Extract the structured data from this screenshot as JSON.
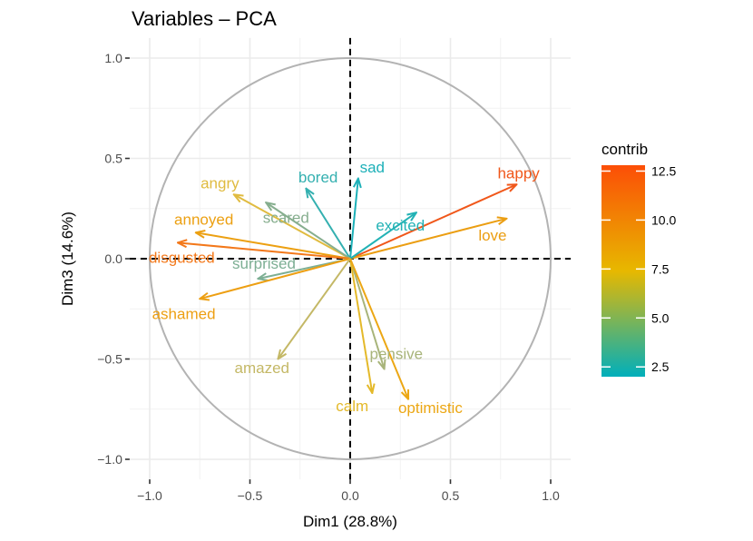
{
  "chart_data": {
    "type": "scatter",
    "title": "Variables – PCA",
    "xlabel": "Dim1 (28.8%)",
    "ylabel": "Dim3 (14.6%)",
    "xlim": [
      -1.1,
      1.1
    ],
    "ylim": [
      -1.1,
      1.1
    ],
    "xticks": [
      -1.0,
      -0.5,
      0.0,
      0.5,
      1.0
    ],
    "xtick_labels": [
      "−1.0",
      "−0.5",
      "0.0",
      "0.5",
      "1.0"
    ],
    "yticks": [
      -1.0,
      -0.5,
      0.0,
      0.5,
      1.0
    ],
    "ytick_labels": [
      "−1.0",
      "−0.5",
      "0.0",
      "0.5",
      "1.0"
    ],
    "grid": true,
    "legend": {
      "title": "contrib",
      "placement": "right",
      "min": 2.0,
      "max": 12.8,
      "ticks": [
        2.5,
        5.0,
        7.5,
        10.0,
        12.5
      ],
      "tick_labels": [
        "2.5",
        "5.0",
        "7.5",
        "10.0",
        "12.5"
      ],
      "colors": [
        "#00AFBB",
        "#E7B800",
        "#FC4E07"
      ]
    },
    "variables": [
      {
        "name": "happy",
        "x": 0.83,
        "y": 0.37,
        "contrib": 12.4,
        "color": "#F0571A",
        "label_x": 0.84,
        "label_y": 0.42
      },
      {
        "name": "love",
        "x": 0.78,
        "y": 0.2,
        "contrib": 9.5,
        "color": "#EB9E12",
        "label_x": 0.71,
        "label_y": 0.11
      },
      {
        "name": "excited",
        "x": 0.33,
        "y": 0.23,
        "contrib": 2.6,
        "color": "#22B2B5",
        "label_x": 0.25,
        "label_y": 0.16
      },
      {
        "name": "sad",
        "x": 0.04,
        "y": 0.4,
        "contrib": 2.4,
        "color": "#1DB0B8",
        "label_x": 0.11,
        "label_y": 0.45
      },
      {
        "name": "bored",
        "x": -0.22,
        "y": 0.35,
        "contrib": 2.8,
        "color": "#34B0B0",
        "label_x": -0.16,
        "label_y": 0.4
      },
      {
        "name": "angry",
        "x": -0.58,
        "y": 0.32,
        "contrib": 7.2,
        "color": "#E0BB40",
        "label_x": -0.65,
        "label_y": 0.37
      },
      {
        "name": "scared",
        "x": -0.42,
        "y": 0.28,
        "contrib": 4.2,
        "color": "#86AE8E",
        "label_x": -0.32,
        "label_y": 0.2
      },
      {
        "name": "annoyed",
        "x": -0.77,
        "y": 0.13,
        "contrib": 9.4,
        "color": "#ECA012",
        "label_x": -0.73,
        "label_y": 0.19
      },
      {
        "name": "disgusted",
        "x": -0.86,
        "y": 0.08,
        "contrib": 11.5,
        "color": "#F3781A",
        "label_x": -0.84,
        "label_y": 0.0
      },
      {
        "name": "surprised",
        "x": -0.46,
        "y": -0.1,
        "contrib": 4.0,
        "color": "#7DAF94",
        "label_x": -0.43,
        "label_y": -0.03
      },
      {
        "name": "ashamed",
        "x": -0.75,
        "y": -0.2,
        "contrib": 9.6,
        "color": "#ED9F12",
        "label_x": -0.83,
        "label_y": -0.28
      },
      {
        "name": "amazed",
        "x": -0.36,
        "y": -0.5,
        "contrib": 6.2,
        "color": "#C4B866",
        "label_x": -0.44,
        "label_y": -0.55
      },
      {
        "name": "pensive",
        "x": 0.17,
        "y": -0.55,
        "contrib": 5.2,
        "color": "#A8B47A",
        "label_x": 0.23,
        "label_y": -0.48
      },
      {
        "name": "calm",
        "x": 0.11,
        "y": -0.67,
        "contrib": 7.6,
        "color": "#E4B92A",
        "label_x": 0.01,
        "label_y": -0.74
      },
      {
        "name": "optimistic",
        "x": 0.29,
        "y": -0.7,
        "contrib": 9.0,
        "color": "#ECA714",
        "label_x": 0.4,
        "label_y": -0.75
      }
    ]
  }
}
